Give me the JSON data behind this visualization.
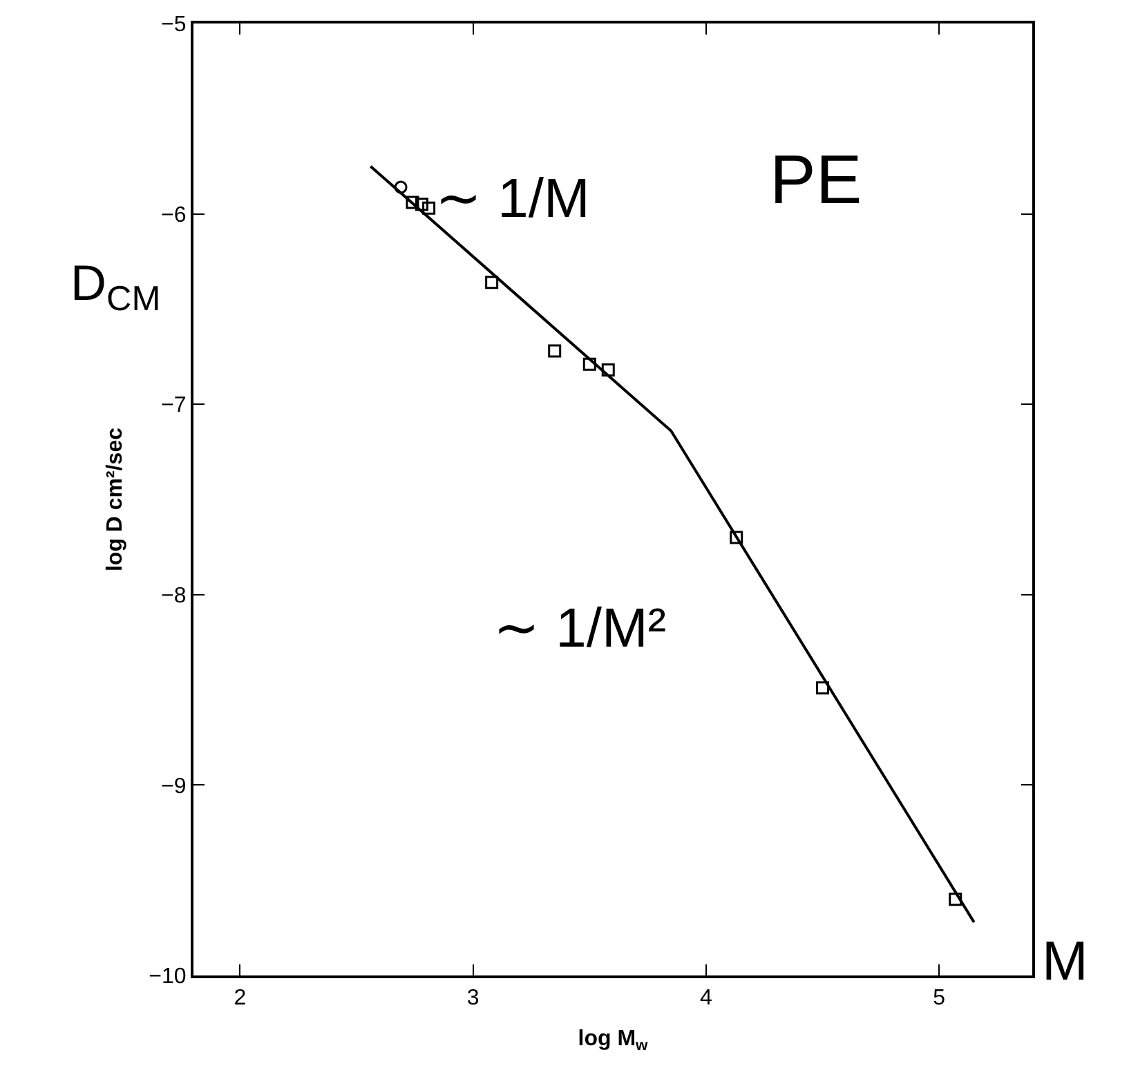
{
  "chart_data": {
    "type": "scatter",
    "xlabel": "log M$_{w}$",
    "ylabel": "log D cm²/sec",
    "xlim": [
      1.8,
      5.4
    ],
    "xticks": [
      2,
      3,
      4,
      5
    ],
    "ylim": [
      -10,
      -5
    ],
    "yticks": [
      {
        "value": -5,
        "label": "−5"
      },
      {
        "value": -6,
        "label": "−6"
      },
      {
        "value": -7,
        "label": "−7"
      },
      {
        "value": -8,
        "label": "−8"
      },
      {
        "value": -9,
        "label": "−9"
      },
      {
        "value": -10,
        "label": "−10"
      }
    ],
    "series": [
      {
        "marker": "circle",
        "color": "#000000",
        "x": [
          2.69
        ],
        "values": [
          -5.86
        ]
      },
      {
        "marker": "square",
        "color": "#000000",
        "x": [
          2.74,
          2.78,
          2.81,
          3.08,
          3.35,
          3.5,
          3.58,
          4.13,
          4.5,
          5.07
        ],
        "values": [
          -5.94,
          -5.95,
          -5.97,
          -6.36,
          -6.72,
          -6.79,
          -6.82,
          -7.7,
          -8.49,
          -9.6
        ]
      },
      {
        "type": "line",
        "marker": "none",
        "line_style": "solid",
        "color": "#000000",
        "x": [
          2.56,
          3.85,
          5.15
        ],
        "values": [
          -5.75,
          -7.14,
          -9.72
        ]
      }
    ],
    "annotations": [
      "∼ 1/M",
      "∼ 1/M²",
      "PE",
      "D$_{CM}$",
      "M"
    ]
  }
}
